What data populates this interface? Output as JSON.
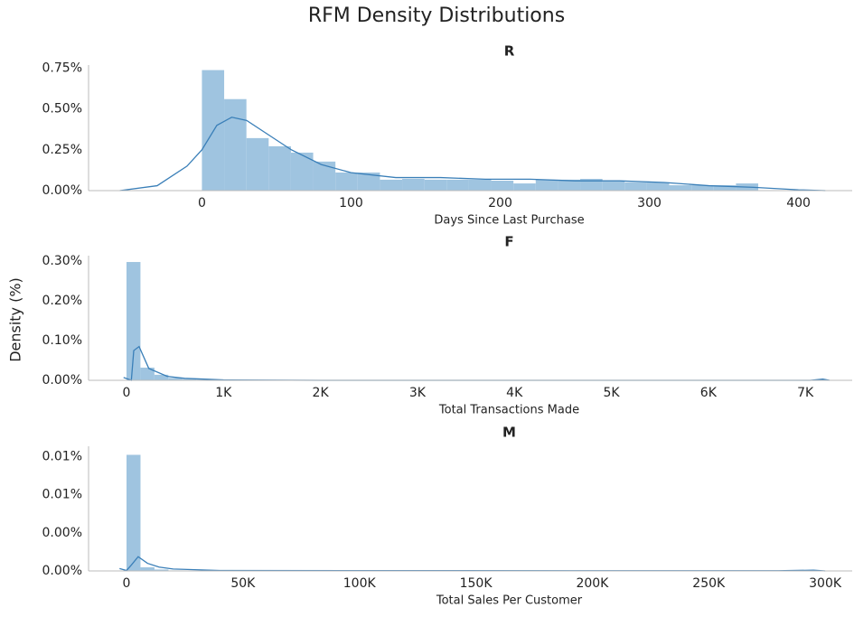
{
  "title": "RFM Density Distributions",
  "ylabel": "Density (%)",
  "chart_data": [
    {
      "type": "histogram",
      "title": "R",
      "xlabel": "Days Since Last Purchase",
      "color": "#9fc4e0",
      "bins": [
        0,
        14.92,
        29.84,
        44.76,
        59.68,
        74.6,
        89.52,
        104.44,
        119.36,
        134.28,
        149.2,
        164.12,
        179.04,
        193.96,
        208.88,
        223.8,
        238.72,
        253.64,
        268.56,
        283.48,
        298.4,
        313.32,
        328.24,
        343.16,
        358.08,
        373
      ],
      "values": [
        0.00739,
        0.00561,
        0.00322,
        0.00272,
        0.00233,
        0.00178,
        0.00111,
        0.00111,
        0.00067,
        0.00072,
        0.00067,
        0.00067,
        0.00067,
        0.00061,
        0.00044,
        0.00067,
        0.00067,
        0.00072,
        0.00056,
        0.0005,
        0.0005,
        0.00033,
        0.00033,
        0.00033,
        0.00044
      ],
      "kde": {
        "color": "#3a7fb8",
        "x": [
          -55,
          -30,
          -10,
          0,
          10,
          20,
          30,
          45,
          60,
          80,
          100,
          130,
          160,
          190,
          220,
          250,
          280,
          310,
          340,
          370,
          400,
          418
        ],
        "values": [
          0,
          0.0003,
          0.0015,
          0.0025,
          0.004,
          0.0045,
          0.0043,
          0.0034,
          0.0025,
          0.0016,
          0.0011,
          0.0008,
          0.0008,
          0.0007,
          0.0007,
          0.0006,
          0.0006,
          0.0005,
          0.0003,
          0.0002,
          5e-05,
          0
        ]
      },
      "xlim": [
        -76,
        436
      ],
      "xticks": [
        0,
        100,
        200,
        300,
        400
      ],
      "ylim": [
        0,
        0.0077
      ],
      "yticks": [
        {
          "value": 0,
          "label": "0.00%"
        },
        {
          "value": 0.0025,
          "label": "0.25%"
        },
        {
          "value": 0.005,
          "label": "0.50%"
        },
        {
          "value": 0.0075,
          "label": "0.75%"
        }
      ]
    },
    {
      "type": "histogram",
      "title": "F",
      "xlabel": "Total Transactions Made",
      "color": "#9fc4e0",
      "bins": [
        0,
        144,
        288,
        432,
        576,
        720,
        864,
        1008,
        1152,
        1296,
        1440,
        1584,
        1728,
        1872,
        2016,
        2160,
        2304,
        2448,
        2592,
        2736,
        2880,
        3024,
        3168,
        3312,
        3456,
        3600,
        3744,
        3888,
        4032,
        4176,
        4320,
        4464,
        4608,
        4752,
        4896,
        5040,
        5184,
        5328,
        5472,
        5616,
        5760,
        5904,
        6048,
        6192,
        6336,
        6480,
        6624,
        6768,
        6912,
        7056,
        7200
      ],
      "values": [
        0.00298,
        0.00032,
        0.00014,
        6e-05,
        3e-05,
        2e-05,
        1e-05,
        1e-05,
        0,
        0,
        0,
        0,
        0,
        0,
        0,
        0,
        0,
        0,
        0,
        0,
        0,
        0,
        0,
        0,
        0,
        0,
        0,
        0,
        0,
        0,
        0,
        0,
        0,
        0,
        0,
        0,
        0,
        0,
        0,
        0,
        0,
        0,
        0,
        0,
        0,
        0,
        0,
        0,
        0,
        1e-05
      ],
      "kde": {
        "color": "#3a7fb8",
        "x": [
          -30,
          50,
          75,
          130,
          230,
          420,
          600,
          1000,
          2000,
          4000,
          6000,
          7050,
          7180,
          7250
        ],
        "values": [
          7e-05,
          0,
          0.00075,
          0.00085,
          0.0003,
          0.0001,
          5e-05,
          1e-05,
          0,
          0,
          0,
          0,
          3e-05,
          0
        ]
      },
      "xlim": [
        -391,
        7483
      ],
      "xticks": [
        0,
        {
          "value": 1000,
          "label": "1K"
        },
        {
          "value": 2000,
          "label": "2K"
        },
        {
          "value": 3000,
          "label": "3K"
        },
        {
          "value": 4000,
          "label": "4K"
        },
        {
          "value": 5000,
          "label": "5K"
        },
        {
          "value": 6000,
          "label": "6K"
        },
        {
          "value": 7000,
          "label": "7K"
        }
      ],
      "ylim": [
        0,
        0.00314
      ],
      "yticks": [
        {
          "value": 0,
          "label": "0.00%"
        },
        {
          "value": 0.001,
          "label": "0.10%"
        },
        {
          "value": 0.002,
          "label": "0.20%"
        },
        {
          "value": 0.003,
          "label": "0.30%"
        }
      ]
    },
    {
      "type": "histogram",
      "title": "M",
      "xlabel": "Total Sales Per Customer",
      "color": "#9fc4e0",
      "bins": [
        0,
        6000,
        12000,
        18000,
        24000,
        30000,
        36000,
        42000,
        48000,
        54000,
        60000,
        66000,
        72000,
        78000,
        84000,
        90000,
        96000,
        102000,
        108000,
        114000,
        120000,
        126000,
        132000,
        138000,
        144000,
        150000,
        156000,
        162000,
        168000,
        174000,
        180000,
        186000,
        192000,
        198000,
        204000,
        210000,
        216000,
        222000,
        228000,
        234000,
        240000,
        246000,
        252000,
        258000,
        264000,
        270000,
        276000,
        282000,
        288000,
        294000,
        300000
      ],
      "values": [
        0.000122,
        3.8e-06,
        1.5e-06,
        5e-07,
        0,
        0,
        0,
        0,
        0,
        0,
        0,
        0,
        0,
        0,
        0,
        0,
        0,
        0,
        0,
        0,
        0,
        0,
        0,
        0,
        0,
        0,
        0,
        0,
        0,
        0,
        0,
        0,
        0,
        0,
        0,
        0,
        0,
        0,
        0,
        0,
        0,
        0,
        0,
        0,
        0,
        0,
        0,
        0,
        0,
        0
      ],
      "kde": {
        "color": "#3a7fb8",
        "x": [
          -3000,
          0,
          2000,
          5000,
          9000,
          14000,
          20000,
          40000,
          100000,
          280000,
          295000,
          300000
        ],
        "values": [
          2.5e-06,
          5e-07,
          6e-06,
          1.5e-05,
          8e-06,
          4e-06,
          2e-06,
          5e-07,
          3e-07,
          2e-07,
          8e-07,
          0
        ]
      },
      "xlim": [
        -16300,
        311600
      ],
      "xticks": [
        0,
        {
          "value": 50000,
          "label": "50K"
        },
        {
          "value": 100000,
          "label": "100K"
        },
        {
          "value": 150000,
          "label": "150K"
        },
        {
          "value": 200000,
          "label": "200K"
        },
        {
          "value": 250000,
          "label": "250K"
        },
        {
          "value": 300000,
          "label": "300K"
        }
      ],
      "ylim": [
        0,
        0.000131
      ],
      "yticks": [
        {
          "value": 0,
          "label": "0.00%"
        },
        {
          "value": 4e-05,
          "label": "0.00%"
        },
        {
          "value": 8e-05,
          "label": "0.01%"
        },
        {
          "value": 0.00012,
          "label": "0.01%"
        }
      ]
    }
  ]
}
